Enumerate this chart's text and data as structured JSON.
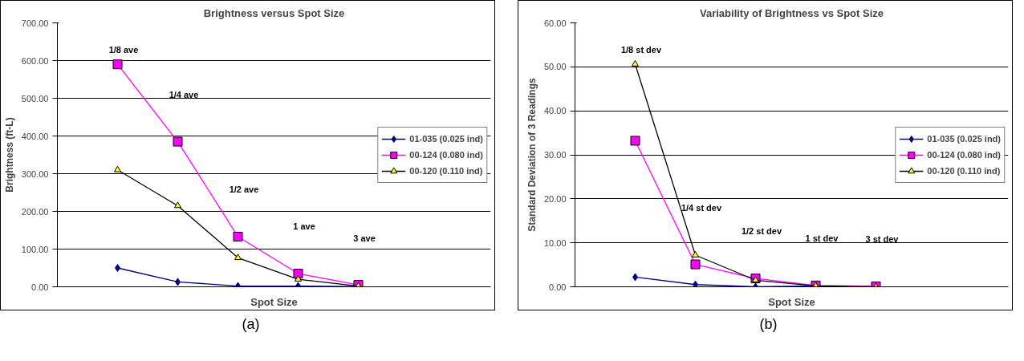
{
  "chart_data": [
    {
      "type": "line",
      "title": "Brightness versus Spot Size",
      "xlabel": "Spot Size",
      "ylabel": "Brightness (ft-L)",
      "categories": [
        null,
        null,
        null,
        null,
        null
      ],
      "series": [
        {
          "name": "01-035 (0.025 ind)",
          "color": "#000080",
          "marker": "diamond",
          "values": [
            50,
            13,
            2,
            2,
            1
          ]
        },
        {
          "name": "00-124 (0.080 ind)",
          "color": "#ff00ff",
          "marker": "square",
          "values": [
            590,
            385,
            133,
            35,
            5
          ]
        },
        {
          "name": "00-120 (0.110 ind)",
          "color": "#000000",
          "marker": "triangle",
          "values": [
            310,
            215,
            77,
            20,
            2
          ]
        }
      ],
      "ylim": [
        0,
        700
      ],
      "yticks": [
        {
          "value": 0,
          "label": "0.00"
        },
        {
          "value": 100,
          "label": "100.00"
        },
        {
          "value": 200,
          "label": "200.00"
        },
        {
          "value": 300,
          "label": "300.00"
        },
        {
          "value": 400,
          "label": "400.00"
        },
        {
          "value": 500,
          "label": "500.00"
        },
        {
          "value": 600,
          "label": "600.00"
        },
        {
          "value": 700,
          "label": "700.00"
        }
      ],
      "grid": "y",
      "legend": "right",
      "tick_labels": "y",
      "annotations": [
        "1/8 ave",
        "1/4 ave",
        "1/2 ave",
        "1 ave",
        "3 ave",
        "(a)"
      ]
    },
    {
      "type": "line",
      "title": "Variability of Brightness vs Spot Size",
      "xlabel": "Spot Size",
      "ylabel": "Standard Deviation of 3 Readings",
      "categories": [
        null,
        null,
        null,
        null,
        null
      ],
      "series": [
        {
          "name": "01-035 (0.025 ind)",
          "color": "#000080",
          "marker": "diamond",
          "values": [
            2.2,
            0.5,
            0.0,
            0.2,
            0.0
          ]
        },
        {
          "name": "00-124 (0.080 ind)",
          "color": "#ff00ff",
          "marker": "square",
          "values": [
            33.2,
            5.1,
            1.9,
            0.3,
            0.1
          ]
        },
        {
          "name": "00-120 (0.110 ind)",
          "color": "#000000",
          "marker": "triangle",
          "values": [
            50.6,
            7.2,
            1.5,
            0.2,
            0.0
          ]
        }
      ],
      "ylim": [
        0,
        60
      ],
      "yticks": [
        {
          "value": 0,
          "label": "0.00"
        },
        {
          "value": 10,
          "label": "10.00"
        },
        {
          "value": 20,
          "label": "20.00"
        },
        {
          "value": 30,
          "label": "30.00"
        },
        {
          "value": 40,
          "label": "40.00"
        },
        {
          "value": 50,
          "label": "50.00"
        },
        {
          "value": 60,
          "label": "60.00"
        }
      ],
      "grid": "y",
      "legend": "right",
      "tick_labels": "y",
      "annotations": [
        "1/8 st dev",
        "1/4 st dev",
        "1/2 st dev",
        "1 st dev",
        "3 st dev",
        "(b)"
      ]
    }
  ]
}
